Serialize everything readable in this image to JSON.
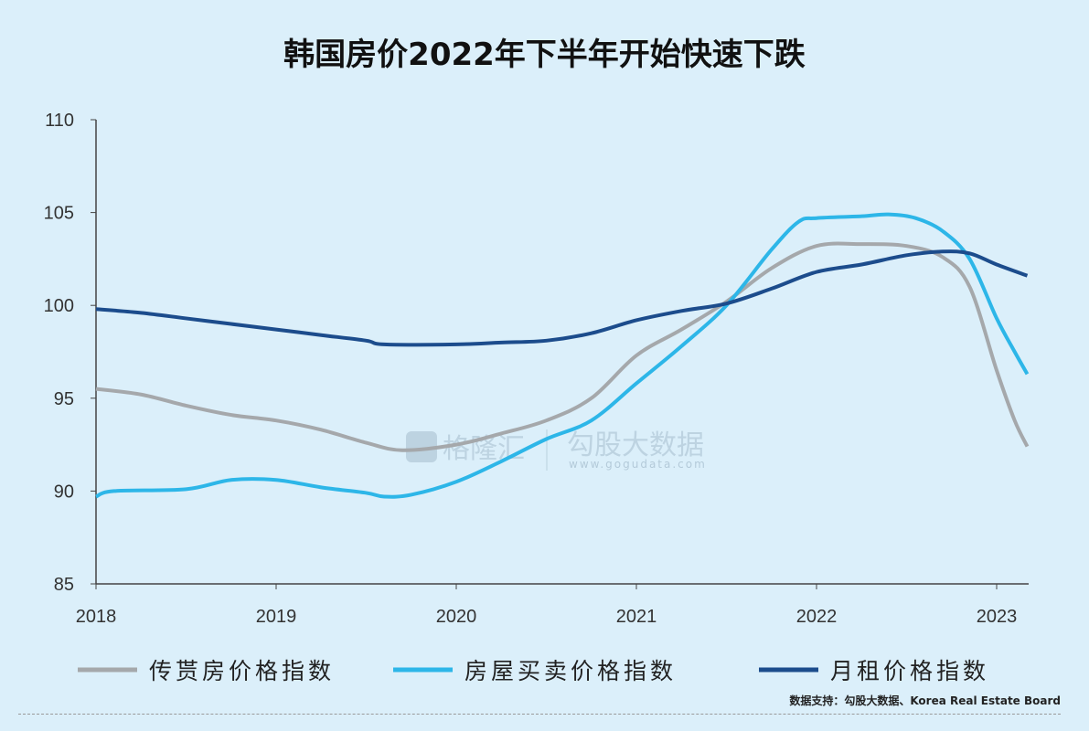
{
  "chart_data": {
    "type": "line",
    "title": "韩国房价2022年下半年开始快速下跌",
    "xlabel": "",
    "ylabel": "",
    "xlim": [
      2018,
      2023.18
    ],
    "ylim": [
      85,
      110
    ],
    "yticks": [
      "110",
      "105",
      "100",
      "95",
      "90",
      "85"
    ],
    "xticks": [
      "2018",
      "2019",
      "2020",
      "2021",
      "2022",
      "2023"
    ],
    "legend_position": "bottom",
    "grid": false,
    "series": [
      {
        "name": "传贳房价格指数",
        "color": "#a5a8ab",
        "x": [
          2018.0,
          2018.25,
          2018.5,
          2018.75,
          2019.0,
          2019.25,
          2019.5,
          2019.7,
          2020.0,
          2020.25,
          2020.5,
          2020.75,
          2021.0,
          2021.25,
          2021.5,
          2021.75,
          2022.0,
          2022.25,
          2022.5,
          2022.7,
          2022.85,
          2023.0,
          2023.1,
          2023.17
        ],
        "values": [
          95.5,
          95.2,
          94.6,
          94.1,
          93.8,
          93.3,
          92.6,
          92.2,
          92.5,
          93.1,
          93.8,
          95.0,
          97.3,
          98.7,
          100.2,
          102.0,
          103.2,
          103.3,
          103.2,
          102.6,
          101.0,
          96.5,
          93.8,
          92.4
        ]
      },
      {
        "name": "房屋买卖价格指数",
        "color": "#2db6e8",
        "x": [
          2018.0,
          2018.1,
          2018.5,
          2018.75,
          2019.0,
          2019.25,
          2019.5,
          2019.6,
          2019.75,
          2020.0,
          2020.25,
          2020.5,
          2020.75,
          2021.0,
          2021.25,
          2021.5,
          2021.75,
          2021.9,
          2022.0,
          2022.25,
          2022.4,
          2022.55,
          2022.7,
          2022.85,
          2023.0,
          2023.1,
          2023.17
        ],
        "values": [
          89.7,
          90.0,
          90.1,
          90.6,
          90.6,
          90.2,
          89.9,
          89.7,
          89.8,
          90.5,
          91.6,
          92.8,
          93.8,
          95.8,
          97.8,
          100.0,
          103.0,
          104.5,
          104.7,
          104.8,
          104.9,
          104.7,
          104.0,
          102.5,
          99.3,
          97.5,
          96.3
        ]
      },
      {
        "name": "月租价格指数",
        "color": "#1c4c8c",
        "x": [
          2018.0,
          2018.25,
          2018.5,
          2018.75,
          2019.0,
          2019.25,
          2019.5,
          2019.6,
          2020.0,
          2020.25,
          2020.5,
          2020.75,
          2021.0,
          2021.25,
          2021.5,
          2021.75,
          2022.0,
          2022.25,
          2022.5,
          2022.7,
          2022.85,
          2023.0,
          2023.17
        ],
        "values": [
          99.8,
          99.6,
          99.3,
          99.0,
          98.7,
          98.4,
          98.1,
          97.9,
          97.9,
          98.0,
          98.1,
          98.5,
          99.2,
          99.7,
          100.1,
          100.9,
          101.8,
          102.2,
          102.7,
          102.9,
          102.8,
          102.2,
          101.6
        ]
      }
    ]
  },
  "watermark": {
    "left": "格隆汇",
    "right": "勾股大数据",
    "url": "www.gogudata.com"
  },
  "source": "数据支持：勾股大数据、Korea Real Estate Board"
}
